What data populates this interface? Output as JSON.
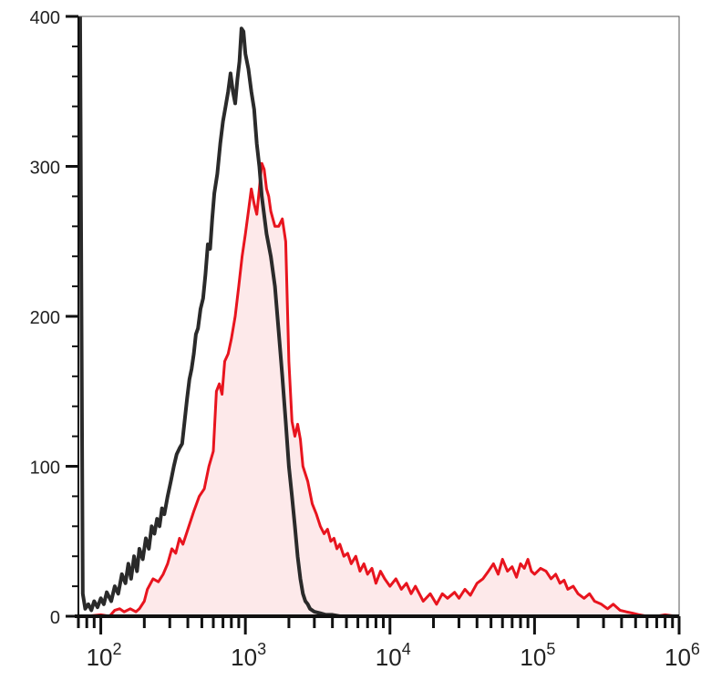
{
  "chart_data": {
    "type": "area",
    "title": "",
    "xlabel": "",
    "ylabel": "",
    "x_scale": "log",
    "xlim": [
      70,
      1000000
    ],
    "ylim": [
      0,
      400
    ],
    "grid": false,
    "x_ticks": [
      {
        "value": 100,
        "base": "10",
        "exp": "2"
      },
      {
        "value": 1000,
        "base": "10",
        "exp": "3"
      },
      {
        "value": 10000,
        "base": "10",
        "exp": "4"
      },
      {
        "value": 100000,
        "base": "10",
        "exp": "5"
      },
      {
        "value": 1000000,
        "base": "10",
        "exp": "6"
      }
    ],
    "y_ticks": [
      {
        "value": 0,
        "label": "0"
      },
      {
        "value": 100,
        "label": "100"
      },
      {
        "value": 200,
        "label": "200"
      },
      {
        "value": 300,
        "label": "300"
      },
      {
        "value": 400,
        "label": "400"
      }
    ],
    "series": [
      {
        "color": "#e8141e",
        "fill": "#fde9ea",
        "points": [
          [
            80,
            0
          ],
          [
            100,
            1
          ],
          [
            115,
            0
          ],
          [
            125,
            4
          ],
          [
            135,
            5
          ],
          [
            145,
            3
          ],
          [
            160,
            5
          ],
          [
            175,
            3
          ],
          [
            185,
            5
          ],
          [
            200,
            10
          ],
          [
            210,
            18
          ],
          [
            230,
            25
          ],
          [
            250,
            23
          ],
          [
            270,
            28
          ],
          [
            290,
            35
          ],
          [
            310,
            45
          ],
          [
            330,
            42
          ],
          [
            350,
            52
          ],
          [
            370,
            48
          ],
          [
            400,
            58
          ],
          [
            440,
            70
          ],
          [
            480,
            80
          ],
          [
            520,
            85
          ],
          [
            560,
            100
          ],
          [
            600,
            110
          ],
          [
            630,
            150
          ],
          [
            660,
            155
          ],
          [
            690,
            148
          ],
          [
            720,
            170
          ],
          [
            760,
            175
          ],
          [
            800,
            185
          ],
          [
            850,
            200
          ],
          [
            900,
            220
          ],
          [
            950,
            240
          ],
          [
            1000,
            255
          ],
          [
            1050,
            270
          ],
          [
            1100,
            285
          ],
          [
            1150,
            275
          ],
          [
            1200,
            268
          ],
          [
            1250,
            285
          ],
          [
            1300,
            302
          ],
          [
            1350,
            298
          ],
          [
            1400,
            285
          ],
          [
            1450,
            280
          ],
          [
            1500,
            270
          ],
          [
            1600,
            260
          ],
          [
            1700,
            260
          ],
          [
            1800,
            265
          ],
          [
            1900,
            250
          ],
          [
            2000,
            170
          ],
          [
            2100,
            130
          ],
          [
            2200,
            120
          ],
          [
            2300,
            128
          ],
          [
            2400,
            118
          ],
          [
            2500,
            100
          ],
          [
            2700,
            90
          ],
          [
            2900,
            75
          ],
          [
            3100,
            68
          ],
          [
            3300,
            60
          ],
          [
            3500,
            55
          ],
          [
            3700,
            58
          ],
          [
            3900,
            50
          ],
          [
            4100,
            52
          ],
          [
            4300,
            45
          ],
          [
            4500,
            48
          ],
          [
            4800,
            40
          ],
          [
            5100,
            42
          ],
          [
            5400,
            35
          ],
          [
            5800,
            40
          ],
          [
            6200,
            30
          ],
          [
            6600,
            35
          ],
          [
            7000,
            28
          ],
          [
            7500,
            32
          ],
          [
            8000,
            22
          ],
          [
            8600,
            30
          ],
          [
            9200,
            25
          ],
          [
            10000,
            20
          ],
          [
            11000,
            25
          ],
          [
            12000,
            18
          ],
          [
            13000,
            22
          ],
          [
            14000,
            15
          ],
          [
            15000,
            20
          ],
          [
            17000,
            10
          ],
          [
            19000,
            15
          ],
          [
            21000,
            8
          ],
          [
            23000,
            15
          ],
          [
            25000,
            12
          ],
          [
            28000,
            16
          ],
          [
            30000,
            12
          ],
          [
            33000,
            18
          ],
          [
            36000,
            14
          ],
          [
            40000,
            22
          ],
          [
            44000,
            25
          ],
          [
            48000,
            30
          ],
          [
            52000,
            35
          ],
          [
            56000,
            28
          ],
          [
            60000,
            38
          ],
          [
            65000,
            30
          ],
          [
            70000,
            33
          ],
          [
            75000,
            26
          ],
          [
            80000,
            35
          ],
          [
            85000,
            32
          ],
          [
            90000,
            38
          ],
          [
            95000,
            30
          ],
          [
            100000,
            28
          ],
          [
            110000,
            32
          ],
          [
            120000,
            30
          ],
          [
            130000,
            25
          ],
          [
            140000,
            28
          ],
          [
            150000,
            22
          ],
          [
            160000,
            24
          ],
          [
            170000,
            18
          ],
          [
            185000,
            20
          ],
          [
            200000,
            15
          ],
          [
            220000,
            12
          ],
          [
            240000,
            15
          ],
          [
            260000,
            10
          ],
          [
            290000,
            8
          ],
          [
            320000,
            5
          ],
          [
            350000,
            8
          ],
          [
            390000,
            4
          ],
          [
            430000,
            3
          ],
          [
            480000,
            2
          ],
          [
            530000,
            1
          ],
          [
            600000,
            0
          ],
          [
            700000,
            0
          ],
          [
            800000,
            1
          ],
          [
            950000,
            0
          ]
        ]
      },
      {
        "color": "#2a2a2a",
        "points": [
          [
            72,
            400
          ],
          [
            75,
            15
          ],
          [
            78,
            5
          ],
          [
            82,
            8
          ],
          [
            86,
            4
          ],
          [
            90,
            10
          ],
          [
            95,
            6
          ],
          [
            100,
            12
          ],
          [
            105,
            8
          ],
          [
            110,
            16
          ],
          [
            118,
            10
          ],
          [
            125,
            20
          ],
          [
            132,
            15
          ],
          [
            140,
            28
          ],
          [
            148,
            22
          ],
          [
            155,
            35
          ],
          [
            162,
            25
          ],
          [
            170,
            40
          ],
          [
            178,
            30
          ],
          [
            185,
            45
          ],
          [
            195,
            38
          ],
          [
            205,
            52
          ],
          [
            215,
            45
          ],
          [
            225,
            60
          ],
          [
            235,
            55
          ],
          [
            245,
            65
          ],
          [
            255,
            60
          ],
          [
            265,
            72
          ],
          [
            275,
            68
          ],
          [
            290,
            80
          ],
          [
            305,
            90
          ],
          [
            320,
            100
          ],
          [
            335,
            108
          ],
          [
            350,
            112
          ],
          [
            365,
            115
          ],
          [
            380,
            130
          ],
          [
            395,
            145
          ],
          [
            410,
            158
          ],
          [
            425,
            165
          ],
          [
            440,
            175
          ],
          [
            455,
            188
          ],
          [
            470,
            192
          ],
          [
            490,
            205
          ],
          [
            510,
            212
          ],
          [
            530,
            228
          ],
          [
            550,
            248
          ],
          [
            570,
            245
          ],
          [
            590,
            265
          ],
          [
            610,
            282
          ],
          [
            640,
            295
          ],
          [
            670,
            315
          ],
          [
            700,
            330
          ],
          [
            730,
            340
          ],
          [
            760,
            350
          ],
          [
            790,
            362
          ],
          [
            820,
            350
          ],
          [
            850,
            342
          ],
          [
            880,
            358
          ],
          [
            910,
            370
          ],
          [
            940,
            392
          ],
          [
            970,
            390
          ],
          [
            1000,
            375
          ],
          [
            1050,
            365
          ],
          [
            1100,
            350
          ],
          [
            1150,
            338
          ],
          [
            1200,
            315
          ],
          [
            1250,
            300
          ],
          [
            1300,
            280
          ],
          [
            1400,
            255
          ],
          [
            1500,
            240
          ],
          [
            1600,
            220
          ],
          [
            1700,
            190
          ],
          [
            1800,
            160
          ],
          [
            1900,
            130
          ],
          [
            2000,
            100
          ],
          [
            2100,
            80
          ],
          [
            2200,
            60
          ],
          [
            2300,
            40
          ],
          [
            2400,
            25
          ],
          [
            2500,
            15
          ],
          [
            2600,
            10
          ],
          [
            2700,
            8
          ],
          [
            2800,
            5
          ],
          [
            3000,
            3
          ],
          [
            3300,
            2
          ],
          [
            3600,
            1
          ],
          [
            4000,
            1
          ],
          [
            4500,
            0
          ],
          [
            5000,
            0
          ]
        ]
      }
    ]
  }
}
